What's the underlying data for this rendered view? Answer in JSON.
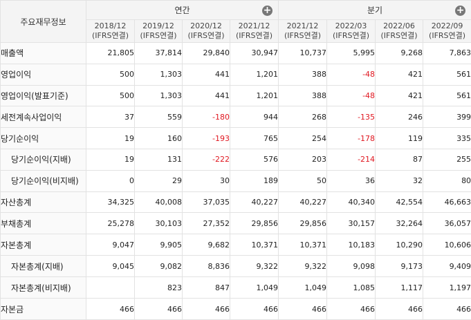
{
  "header": {
    "row_label": "주요재무정보",
    "annual_label": "연간",
    "quarter_label": "분기",
    "plus_icon": "+",
    "periods": [
      {
        "date": "2018/12",
        "std": "(IFRS연결)"
      },
      {
        "date": "2019/12",
        "std": "(IFRS연결)"
      },
      {
        "date": "2020/12",
        "std": "(IFRS연결)"
      },
      {
        "date": "2021/12",
        "std": "(IFRS연결)"
      },
      {
        "date": "2021/12",
        "std": "(IFRS연결)"
      },
      {
        "date": "2022/03",
        "std": "(IFRS연결)"
      },
      {
        "date": "2022/06",
        "std": "(IFRS연결)"
      },
      {
        "date": "2022/09",
        "std": "(IFRS연결)"
      }
    ]
  },
  "rows": [
    {
      "label": "매출액",
      "values": [
        "21,805",
        "37,814",
        "29,840",
        "30,947",
        "10,737",
        "5,995",
        "9,268",
        "7,863"
      ]
    },
    {
      "label": "영업이익",
      "values": [
        "500",
        "1,303",
        "441",
        "1,201",
        "388",
        "-48",
        "421",
        "561"
      ]
    },
    {
      "label": "영업이익(발표기준)",
      "values": [
        "500",
        "1,303",
        "441",
        "1,201",
        "388",
        "-48",
        "421",
        "561"
      ]
    },
    {
      "label": "세전계속사업이익",
      "values": [
        "37",
        "559",
        "-180",
        "944",
        "268",
        "-135",
        "246",
        "399"
      ]
    },
    {
      "label": "당기순이익",
      "values": [
        "19",
        "160",
        "-193",
        "765",
        "254",
        "-178",
        "119",
        "335"
      ]
    },
    {
      "label": "당기순이익(지배)",
      "values": [
        "19",
        "131",
        "-222",
        "576",
        "203",
        "-214",
        "87",
        "255"
      ]
    },
    {
      "label": "당기순이익(비지배)",
      "values": [
        "0",
        "29",
        "30",
        "189",
        "50",
        "36",
        "32",
        "80"
      ]
    },
    {
      "label": "자산총계",
      "values": [
        "34,325",
        "40,008",
        "37,035",
        "40,227",
        "40,227",
        "40,340",
        "42,554",
        "46,663"
      ]
    },
    {
      "label": "부채총계",
      "values": [
        "25,278",
        "30,103",
        "27,352",
        "29,856",
        "29,856",
        "30,157",
        "32,264",
        "36,057"
      ]
    },
    {
      "label": "자본총계",
      "values": [
        "9,047",
        "9,905",
        "9,682",
        "10,371",
        "10,371",
        "10,183",
        "10,290",
        "10,606"
      ]
    },
    {
      "label": "자본총계(지배)",
      "values": [
        "9,045",
        "9,082",
        "8,836",
        "9,322",
        "9,322",
        "9,098",
        "9,173",
        "9,409"
      ]
    },
    {
      "label": "자본총계(비지배)",
      "values": [
        "",
        "823",
        "847",
        "1,049",
        "1,049",
        "1,085",
        "1,117",
        "1,197"
      ]
    },
    {
      "label": "자본금",
      "values": [
        "466",
        "466",
        "466",
        "466",
        "466",
        "466",
        "466",
        "466"
      ]
    }
  ],
  "colors": {
    "negative": "#e0161f",
    "header_bg": "#f4f4f4",
    "border": "#e2e2e2"
  }
}
